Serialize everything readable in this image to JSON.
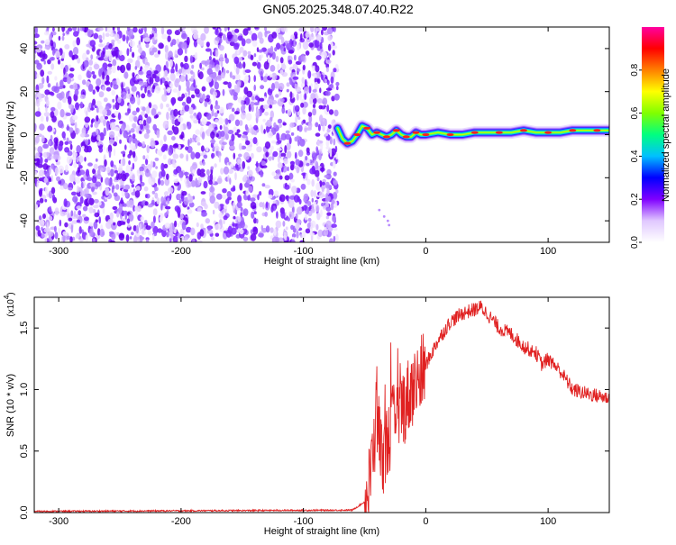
{
  "title": "GN05.2025.348.07.40.R22",
  "chart_data": [
    {
      "type": "heatmap",
      "xlabel": "Height of straight line (km)",
      "ylabel": "Frequency (Hz)",
      "xlim": [
        -320,
        150
      ],
      "ylim": [
        -50,
        50
      ],
      "xticks": [
        -300,
        -200,
        -100,
        0,
        100
      ],
      "xtick_labels": [
        "-300",
        "-200",
        "-100",
        "0",
        "100"
      ],
      "yticks": [
        -40,
        -20,
        0,
        20,
        40
      ],
      "ytick_labels": [
        "-40",
        "-20",
        "0",
        "20",
        "40"
      ],
      "noise_region_x": [
        -320,
        -72
      ],
      "signal_trace": {
        "x": [
          -72,
          -68,
          -64,
          -60,
          -56,
          -52,
          -48,
          -44,
          -40,
          -36,
          -32,
          -28,
          -24,
          -20,
          -16,
          -12,
          -8,
          -4,
          0,
          10,
          20,
          30,
          40,
          50,
          60,
          70,
          80,
          90,
          100,
          110,
          120,
          130,
          140,
          150
        ],
        "y": [
          3,
          -2,
          -4,
          -3,
          0,
          4,
          3,
          0,
          1,
          0,
          -1,
          0,
          2,
          0,
          -1,
          -1,
          1,
          0,
          0,
          1,
          0,
          0,
          1,
          1,
          1,
          1,
          2,
          1,
          1,
          1,
          2,
          2,
          2,
          2
        ]
      },
      "colorbar": {
        "label": "Normalized spectral amplitude",
        "range": [
          0,
          1
        ],
        "ticks": [
          0.0,
          0.2,
          0.4,
          0.6,
          0.8
        ],
        "tick_labels": [
          "0.0",
          "0.2",
          "0.4",
          "0.6",
          "0.8"
        ],
        "colors": [
          "#ffffff",
          "#e0c8ff",
          "#8000ff",
          "#0000ff",
          "#00c0ff",
          "#00ff80",
          "#80ff00",
          "#ffff00",
          "#ff8000",
          "#ff0000",
          "#ff00a0"
        ]
      },
      "grid": false
    },
    {
      "type": "line",
      "xlabel": "Height of straight line (km)",
      "ylabel": "SNR (10 * v/v)",
      "scale_label": "(x10",
      "scale_exponent": "4",
      "xlim": [
        -320,
        150
      ],
      "ylim": [
        0,
        1.75
      ],
      "xticks": [
        -300,
        -200,
        -100,
        0,
        100
      ],
      "xtick_labels": [
        "-300",
        "-200",
        "-100",
        "0",
        "100"
      ],
      "yticks": [
        0.0,
        0.5,
        1.0,
        1.5
      ],
      "ytick_labels": [
        "0.0",
        "0.5",
        "1.0",
        "1.5"
      ],
      "series_color": "#e02020",
      "envelope": {
        "x": [
          -320,
          -60,
          -48,
          -44,
          -40,
          -36,
          -32,
          -28,
          -24,
          -20,
          -16,
          -12,
          -8,
          -4,
          0,
          10,
          20,
          30,
          40,
          45,
          50,
          60,
          70,
          80,
          90,
          95,
          100,
          110,
          120,
          130,
          140,
          150
        ],
        "y": [
          0.01,
          0.02,
          0.1,
          0.4,
          0.8,
          0.45,
          0.55,
          0.7,
          0.75,
          0.85,
          0.9,
          1.0,
          1.05,
          1.1,
          1.2,
          1.4,
          1.55,
          1.62,
          1.65,
          1.67,
          1.62,
          1.5,
          1.45,
          1.35,
          1.3,
          1.2,
          1.25,
          1.15,
          1.0,
          0.97,
          0.95,
          0.93
        ]
      },
      "grid": false
    }
  ]
}
